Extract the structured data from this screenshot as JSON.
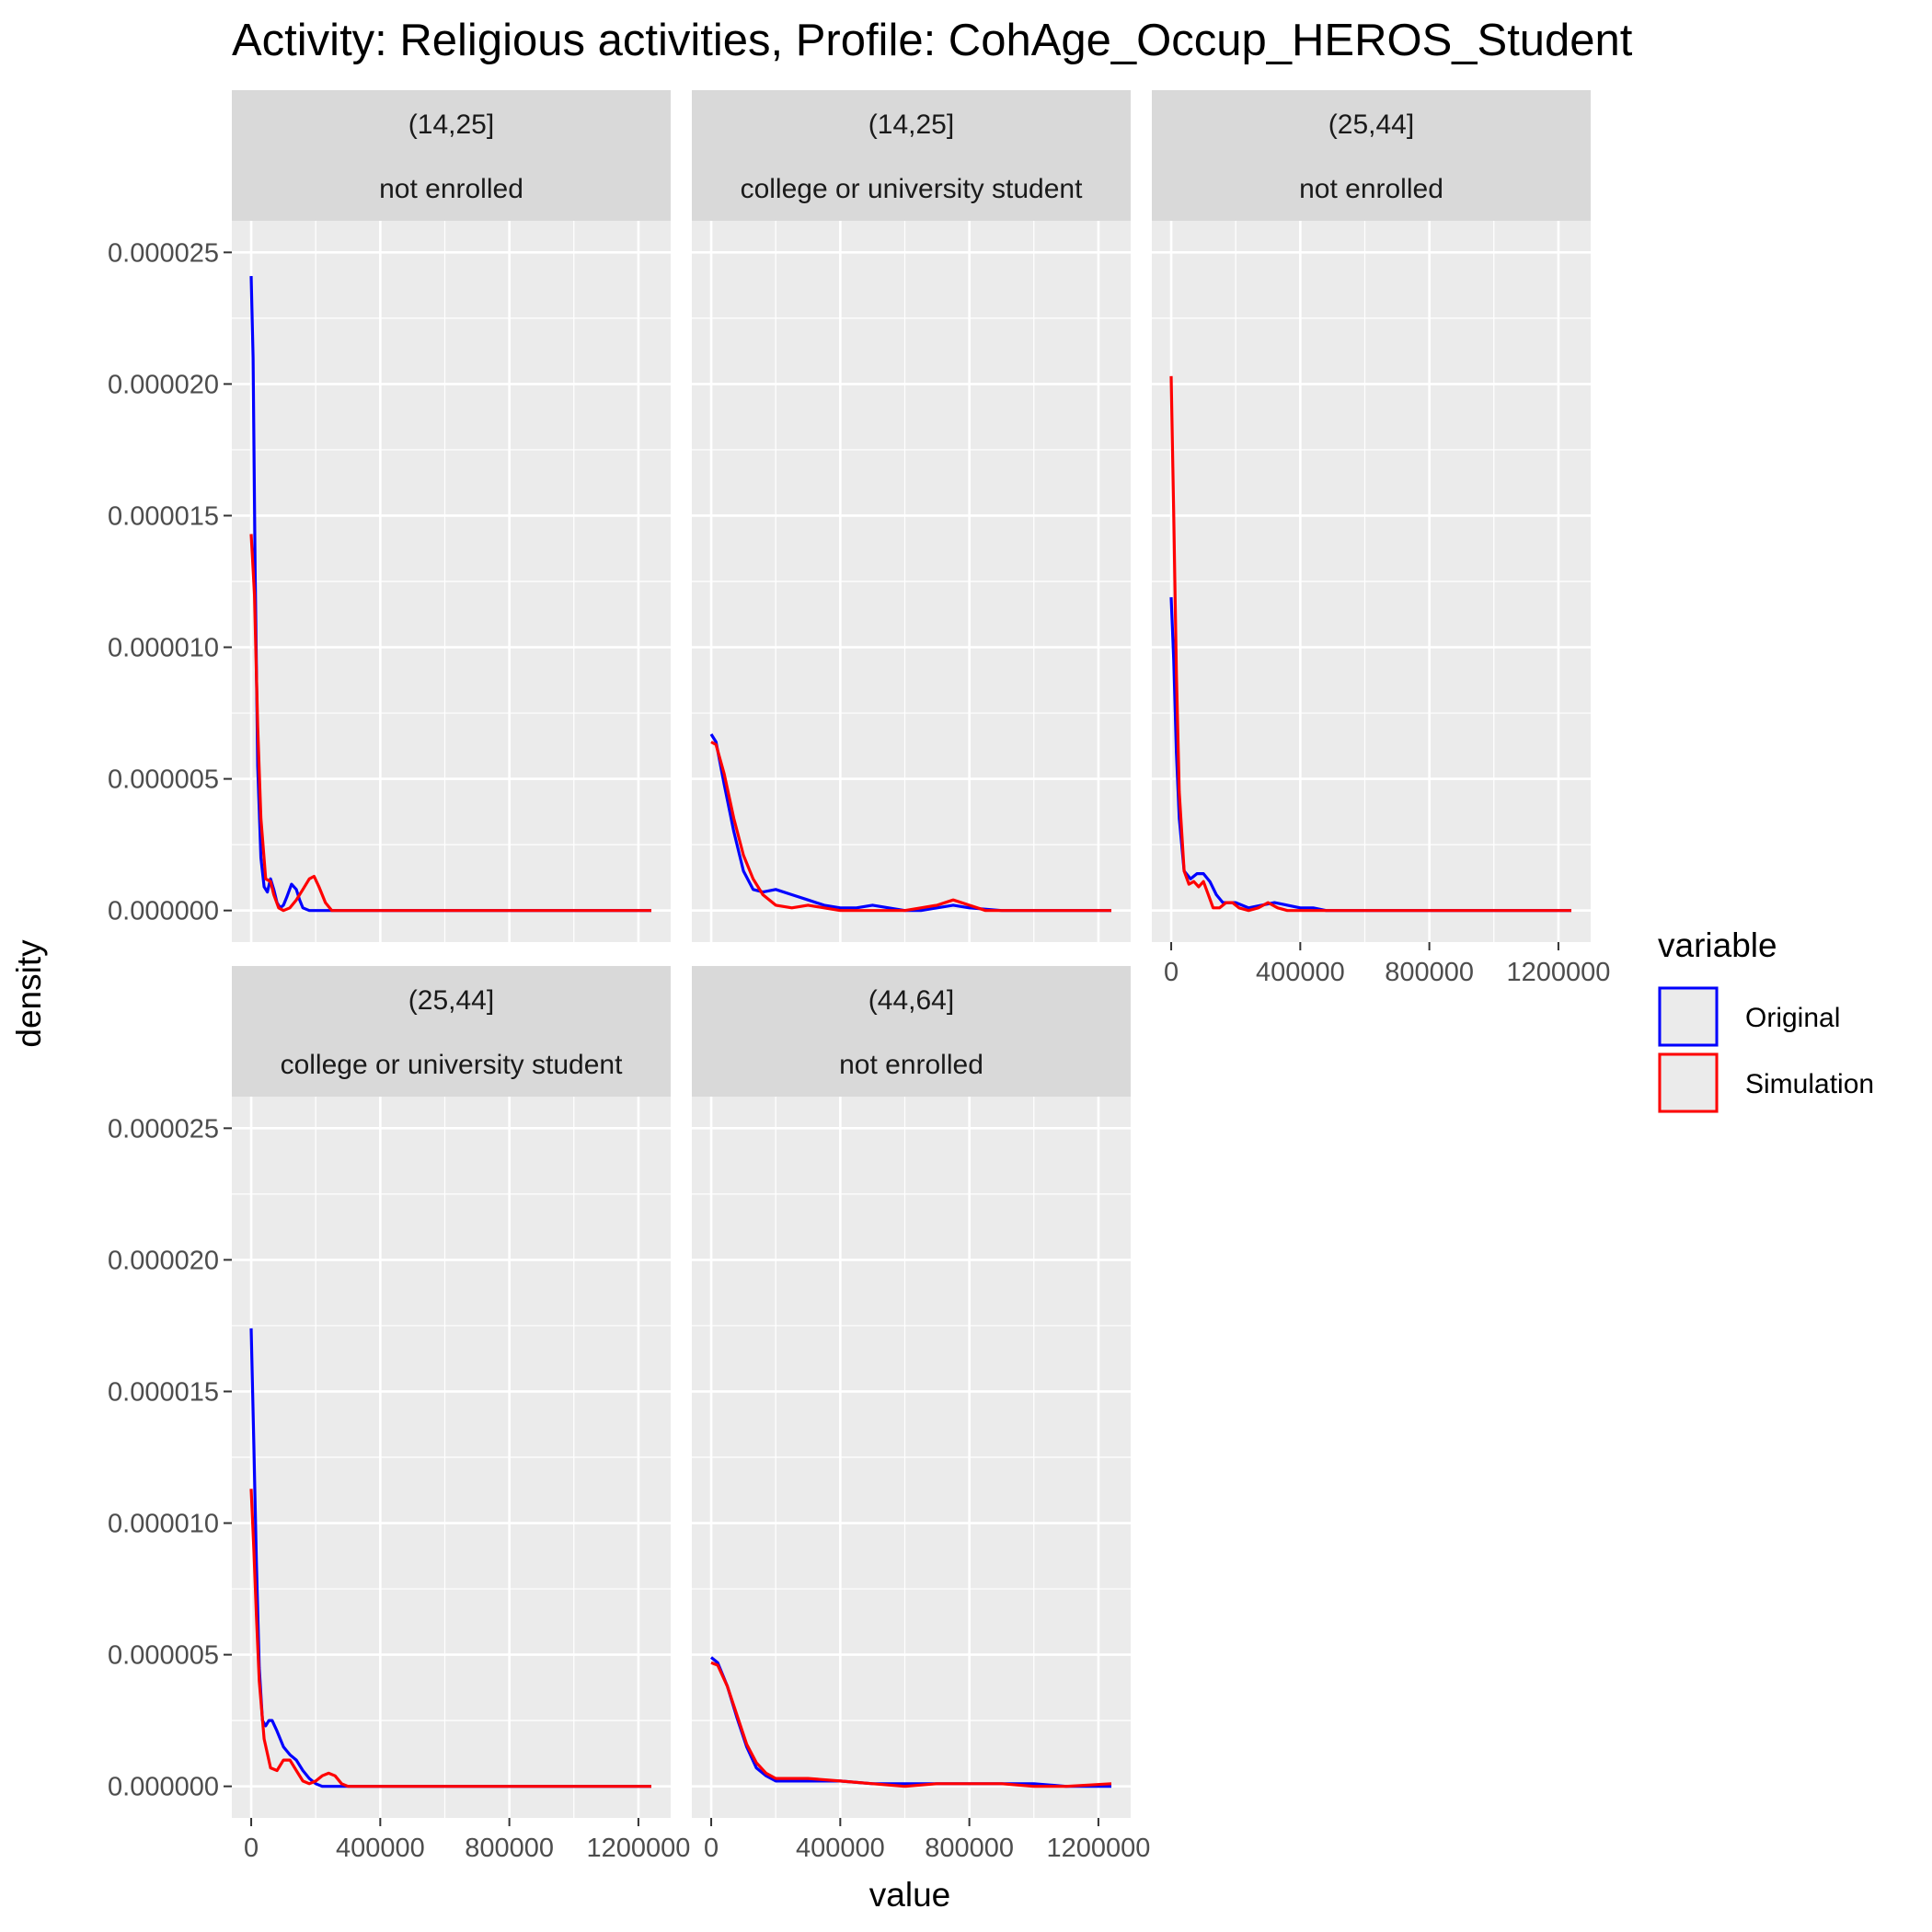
{
  "chart_data": {
    "type": "line",
    "title": "Activity: Religious activities, Profile: CohAge_Occup_HEROS_Student",
    "xlabel": "value",
    "ylabel": "density",
    "xlim": [
      -60000,
      1300000
    ],
    "ylim": [
      -1.2e-06,
      2.62e-05
    ],
    "x_ticks": [
      0,
      400000,
      800000,
      1200000
    ],
    "x_tick_labels": [
      "0",
      "400000",
      "800000",
      "1200000"
    ],
    "y_ticks": [
      0,
      5e-06,
      1e-05,
      1.5e-05,
      2e-05,
      2.5e-05
    ],
    "y_tick_labels": [
      "0.000000",
      "0.000005",
      "0.000010",
      "0.000015",
      "0.000020",
      "0.000025"
    ],
    "grid": true,
    "legend": {
      "title": "variable",
      "position": "right",
      "entries": [
        {
          "name": "Original",
          "color": "#0000ff"
        },
        {
          "name": "Simulation",
          "color": "#ff0000"
        }
      ]
    },
    "panels": [
      {
        "strip": [
          "(14,25]",
          "not enrolled"
        ],
        "series": [
          {
            "name": "Original",
            "color": "#0000ff",
            "x": [
              0,
              6000,
              12000,
              20000,
              30000,
              40000,
              50000,
              60000,
              70000,
              80000,
              90000,
              100000,
              110000,
              125000,
              140000,
              150000,
              160000,
              180000,
              200000,
              300000,
              600000,
              1000000,
              1240000
            ],
            "y": [
              2.41e-05,
              2.1e-05,
              1.3e-05,
              5.5e-06,
              2e-06,
              9e-07,
              7e-07,
              1.2e-06,
              8e-07,
              3e-07,
              1e-07,
              2e-07,
              5e-07,
              1e-06,
              8e-07,
              4e-07,
              1e-07,
              0,
              0,
              0,
              0,
              0,
              0
            ]
          },
          {
            "name": "Simulation",
            "color": "#ff0000",
            "x": [
              0,
              10000,
              20000,
              30000,
              45000,
              60000,
              70000,
              85000,
              100000,
              120000,
              140000,
              160000,
              180000,
              195000,
              210000,
              230000,
              250000,
              300000,
              600000,
              1000000,
              1240000
            ],
            "y": [
              1.43e-05,
              1.2e-05,
              7e-06,
              3.5e-06,
              1.2e-06,
              1.1e-06,
              6e-07,
              1e-07,
              0,
              1e-07,
              4e-07,
              8e-07,
              1.2e-06,
              1.3e-06,
              9e-07,
              3e-07,
              0,
              0,
              0,
              0,
              0
            ]
          }
        ]
      },
      {
        "strip": [
          "(14,25]",
          "college or university student"
        ],
        "series": [
          {
            "name": "Original",
            "color": "#0000ff",
            "x": [
              0,
              15000,
              40000,
              70000,
              100000,
              130000,
              160000,
              200000,
              250000,
              300000,
              350000,
              400000,
              450000,
              500000,
              550000,
              600000,
              650000,
              700000,
              750000,
              800000,
              900000,
              1000000,
              1240000
            ],
            "y": [
              6.7e-06,
              6.4e-06,
              4.8e-06,
              3e-06,
              1.5e-06,
              8e-07,
              7e-07,
              8e-07,
              6e-07,
              4e-07,
              2e-07,
              1e-07,
              1e-07,
              2e-07,
              1e-07,
              0,
              0,
              1e-07,
              2e-07,
              1e-07,
              0,
              0,
              0
            ]
          },
          {
            "name": "Simulation",
            "color": "#ff0000",
            "x": [
              0,
              15000,
              40000,
              70000,
              100000,
              130000,
              160000,
              200000,
              250000,
              300000,
              350000,
              400000,
              450000,
              500000,
              550000,
              600000,
              650000,
              700000,
              750000,
              800000,
              850000,
              900000,
              1000000,
              1240000
            ],
            "y": [
              6.4e-06,
              6.3e-06,
              5.2e-06,
              3.5e-06,
              2.1e-06,
              1.2e-06,
              6e-07,
              2e-07,
              1e-07,
              2e-07,
              1e-07,
              0,
              0,
              0,
              0,
              0,
              1e-07,
              2e-07,
              4e-07,
              2e-07,
              0,
              0,
              0,
              0
            ]
          }
        ]
      },
      {
        "strip": [
          "(25,44]",
          "not enrolled"
        ],
        "series": [
          {
            "name": "Original",
            "color": "#0000ff",
            "x": [
              0,
              8000,
              16000,
              25000,
              40000,
              60000,
              80000,
              100000,
              120000,
              140000,
              160000,
              180000,
              200000,
              240000,
              280000,
              320000,
              360000,
              400000,
              440000,
              480000,
              600000,
              1000000,
              1240000
            ],
            "y": [
              1.19e-05,
              9.5e-06,
              6e-06,
              3.5e-06,
              1.5e-06,
              1.2e-06,
              1.4e-06,
              1.4e-06,
              1.1e-06,
              6e-07,
              3e-07,
              3e-07,
              3e-07,
              1e-07,
              2e-07,
              3e-07,
              2e-07,
              1e-07,
              1e-07,
              0,
              0,
              0,
              0
            ]
          },
          {
            "name": "Simulation",
            "color": "#ff0000",
            "x": [
              0,
              8000,
              16000,
              25000,
              40000,
              55000,
              70000,
              85000,
              100000,
              115000,
              130000,
              150000,
              170000,
              190000,
              210000,
              240000,
              270000,
              300000,
              330000,
              360000,
              400000,
              600000,
              1000000,
              1240000
            ],
            "y": [
              2.03e-05,
              1.5e-05,
              9e-06,
              4.5e-06,
              1.5e-06,
              1e-06,
              1.1e-06,
              9e-07,
              1.1e-06,
              6e-07,
              1e-07,
              1e-07,
              3e-07,
              3e-07,
              1e-07,
              0,
              1e-07,
              3e-07,
              1e-07,
              0,
              0,
              0,
              0,
              0
            ]
          }
        ]
      },
      {
        "strip": [
          "(25,44]",
          "college or university student"
        ],
        "series": [
          {
            "name": "Original",
            "color": "#0000ff",
            "x": [
              0,
              8000,
              16000,
              25000,
              35000,
              45000,
              55000,
              65000,
              80000,
              100000,
              120000,
              140000,
              160000,
              180000,
              200000,
              220000,
              250000,
              300000,
              600000,
              1000000,
              1240000
            ],
            "y": [
              1.74e-05,
              1.3e-05,
              8.5e-06,
              4.5e-06,
              2.5e-06,
              2.3e-06,
              2.5e-06,
              2.5e-06,
              2.1e-06,
              1.5e-06,
              1.2e-06,
              1e-06,
              6e-07,
              3e-07,
              1e-07,
              0,
              0,
              0,
              0,
              0,
              0
            ]
          },
          {
            "name": "Simulation",
            "color": "#ff0000",
            "x": [
              0,
              8000,
              16000,
              25000,
              40000,
              60000,
              80000,
              100000,
              120000,
              140000,
              160000,
              180000,
              200000,
              220000,
              240000,
              260000,
              280000,
              300000,
              320000,
              350000,
              600000,
              1000000,
              1240000
            ],
            "y": [
              1.13e-05,
              9e-06,
              6.5e-06,
              4e-06,
              1.8e-06,
              7e-07,
              6e-07,
              1e-06,
              1e-06,
              6e-07,
              2e-07,
              1e-07,
              2e-07,
              4e-07,
              5e-07,
              4e-07,
              1e-07,
              0,
              0,
              0,
              0,
              0,
              0
            ]
          }
        ]
      },
      {
        "strip": [
          "(44,64]",
          "not enrolled"
        ],
        "series": [
          {
            "name": "Original",
            "color": "#0000ff",
            "x": [
              0,
              20000,
              50000,
              80000,
              110000,
              140000,
              170000,
              200000,
              250000,
              300000,
              400000,
              500000,
              600000,
              700000,
              800000,
              900000,
              1000000,
              1100000,
              1240000
            ],
            "y": [
              4.9e-06,
              4.7e-06,
              3.8e-06,
              2.6e-06,
              1.5e-06,
              7e-07,
              4e-07,
              2e-07,
              2e-07,
              2e-07,
              2e-07,
              1e-07,
              1e-07,
              1e-07,
              1e-07,
              1e-07,
              1e-07,
              0,
              0
            ]
          },
          {
            "name": "Simulation",
            "color": "#ff0000",
            "x": [
              0,
              20000,
              50000,
              80000,
              110000,
              140000,
              170000,
              200000,
              250000,
              300000,
              400000,
              500000,
              600000,
              700000,
              750000,
              800000,
              900000,
              1000000,
              1100000,
              1240000
            ],
            "y": [
              4.7e-06,
              4.6e-06,
              3.8e-06,
              2.7e-06,
              1.6e-06,
              9e-07,
              5e-07,
              3e-07,
              3e-07,
              3e-07,
              2e-07,
              1e-07,
              0,
              1e-07,
              1e-07,
              1e-07,
              1e-07,
              0,
              0,
              1e-07
            ]
          }
        ]
      }
    ]
  }
}
